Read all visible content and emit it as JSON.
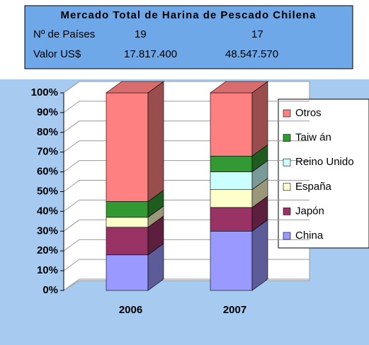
{
  "chart_data": {
    "type": "stacked_bar_3d",
    "info_box": {
      "title": "Mercado Total de Harina de Pescado Chilena",
      "rows": [
        [
          "Nº de Países",
          "19",
          "17"
        ],
        [
          "Valor US$",
          "17.817.400",
          "48.547.570"
        ]
      ]
    },
    "categories": [
      "2006",
      "2007"
    ],
    "series": [
      {
        "name": "China",
        "color": "#9999ff",
        "values": [
          18,
          30
        ]
      },
      {
        "name": "Japón",
        "color": "#993366",
        "values": [
          14,
          12
        ]
      },
      {
        "name": "España",
        "color": "#ffffcc",
        "values": [
          5,
          9
        ]
      },
      {
        "name": "Reino Unido",
        "color": "#ccffff",
        "values": [
          0,
          9
        ]
      },
      {
        "name": "Taiw án",
        "color": "#339933",
        "values": [
          8,
          8
        ]
      },
      {
        "name": "Otros",
        "color": "#ff8080",
        "values": [
          55,
          32
        ]
      }
    ],
    "ylim": [
      0,
      100
    ],
    "yticks": [
      {
        "value": 0,
        "label": "0%"
      },
      {
        "value": 10,
        "label": "10%"
      },
      {
        "value": 20,
        "label": "20%"
      },
      {
        "value": 30,
        "label": "30%"
      },
      {
        "value": 40,
        "label": "40%"
      },
      {
        "value": 50,
        "label": "50%"
      },
      {
        "value": 60,
        "label": "60%"
      },
      {
        "value": 70,
        "label": "70%"
      },
      {
        "value": 80,
        "label": "80%"
      },
      {
        "value": 90,
        "label": "90%"
      },
      {
        "value": 100,
        "label": "100%"
      }
    ],
    "grid": true,
    "legend": "right"
  }
}
